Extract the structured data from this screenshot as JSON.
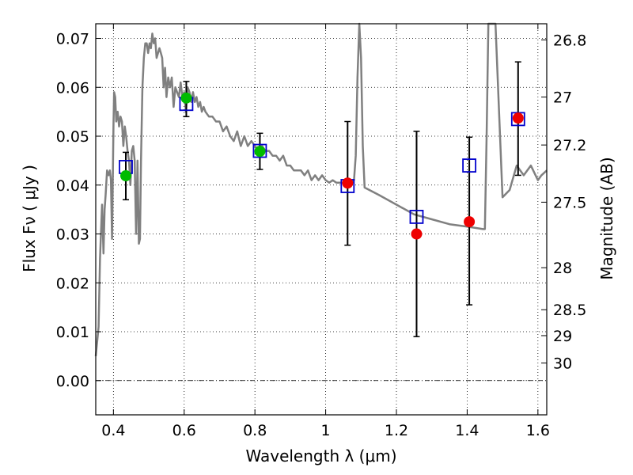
{
  "chart_data": {
    "type": "scatter",
    "xlabel": "Wavelength  λ (μm)",
    "ylabel": "Flux  Fν  ( μJy )",
    "y2label": "Magnitude (AB)",
    "xlim": [
      0.35,
      1.625
    ],
    "ylim": [
      -0.007,
      0.073
    ],
    "grid": true,
    "xticks": [
      0.4,
      0.6,
      0.8,
      1.0,
      1.2,
      1.4,
      1.6
    ],
    "xtick_labels": [
      "0.4",
      "0.6",
      "0.8",
      "1",
      "1.2",
      "1.4",
      "1.6"
    ],
    "yticks": [
      0.0,
      0.01,
      0.02,
      0.03,
      0.04,
      0.05,
      0.06,
      0.07
    ],
    "ytick_labels": [
      "0.00",
      "0.01",
      "0.02",
      "0.03",
      "0.04",
      "0.05",
      "0.06",
      "0.07"
    ],
    "y2ticks": [
      {
        "label": "26.8",
        "flux": 0.0697
      },
      {
        "label": "27",
        "flux": 0.058
      },
      {
        "label": "27.2",
        "flux": 0.0482
      },
      {
        "label": "27.5",
        "flux": 0.0365
      },
      {
        "label": "28",
        "flux": 0.0231
      },
      {
        "label": "28.5",
        "flux": 0.0145
      },
      {
        "label": "29",
        "flux": 0.0092
      },
      {
        "label": "30",
        "flux": 0.0036
      }
    ],
    "colors": {
      "sed": "#808080",
      "model": "#0000cc",
      "green": "#00bb00",
      "red": "#ee0000",
      "errorbar": "#000000"
    },
    "sed_x": [
      0.35,
      0.358,
      0.362,
      0.368,
      0.372,
      0.375,
      0.378,
      0.382,
      0.386,
      0.39,
      0.393,
      0.396,
      0.4,
      0.402,
      0.405,
      0.408,
      0.412,
      0.416,
      0.42,
      0.424,
      0.428,
      0.432,
      0.436,
      0.44,
      0.444,
      0.448,
      0.452,
      0.456,
      0.46,
      0.464,
      0.468,
      0.472,
      0.475,
      0.478,
      0.482,
      0.486,
      0.49,
      0.494,
      0.498,
      0.502,
      0.506,
      0.51,
      0.514,
      0.518,
      0.522,
      0.526,
      0.53,
      0.534,
      0.538,
      0.542,
      0.546,
      0.55,
      0.555,
      0.56,
      0.565,
      0.57,
      0.575,
      0.58,
      0.585,
      0.59,
      0.595,
      0.6,
      0.605,
      0.61,
      0.615,
      0.62,
      0.625,
      0.63,
      0.635,
      0.64,
      0.645,
      0.65,
      0.655,
      0.66,
      0.67,
      0.68,
      0.69,
      0.7,
      0.71,
      0.72,
      0.73,
      0.74,
      0.75,
      0.76,
      0.77,
      0.78,
      0.79,
      0.8,
      0.81,
      0.82,
      0.83,
      0.84,
      0.85,
      0.86,
      0.87,
      0.88,
      0.89,
      0.9,
      0.91,
      0.92,
      0.93,
      0.94,
      0.95,
      0.96,
      0.97,
      0.98,
      0.99,
      1.0,
      1.01,
      1.02,
      1.03,
      1.04,
      1.05,
      1.06,
      1.07,
      1.08,
      1.085,
      1.09,
      1.095,
      1.1,
      1.105,
      1.11,
      1.15,
      1.2,
      1.25,
      1.3,
      1.35,
      1.4,
      1.445,
      1.45,
      1.455,
      1.46,
      1.465,
      1.47,
      1.48,
      1.5,
      1.52,
      1.54,
      1.56,
      1.58,
      1.6,
      1.61,
      1.625
    ],
    "sed_y": [
      0.005,
      0.011,
      0.025,
      0.036,
      0.026,
      0.035,
      0.038,
      0.043,
      0.042,
      0.043,
      0.041,
      0.029,
      0.052,
      0.059,
      0.058,
      0.053,
      0.055,
      0.052,
      0.054,
      0.053,
      0.048,
      0.052,
      0.05,
      0.047,
      0.045,
      0.04,
      0.047,
      0.048,
      0.045,
      0.03,
      0.045,
      0.028,
      0.029,
      0.045,
      0.06,
      0.066,
      0.069,
      0.069,
      0.067,
      0.069,
      0.068,
      0.071,
      0.069,
      0.07,
      0.066,
      0.067,
      0.068,
      0.067,
      0.066,
      0.06,
      0.064,
      0.058,
      0.062,
      0.06,
      0.062,
      0.056,
      0.06,
      0.059,
      0.058,
      0.061,
      0.058,
      0.059,
      0.055,
      0.06,
      0.059,
      0.057,
      0.059,
      0.057,
      0.058,
      0.056,
      0.057,
      0.055,
      0.056,
      0.055,
      0.054,
      0.054,
      0.053,
      0.053,
      0.051,
      0.052,
      0.05,
      0.049,
      0.051,
      0.048,
      0.05,
      0.048,
      0.049,
      0.048,
      0.047,
      0.048,
      0.047,
      0.047,
      0.046,
      0.046,
      0.045,
      0.046,
      0.044,
      0.044,
      0.043,
      0.043,
      0.043,
      0.042,
      0.043,
      0.041,
      0.042,
      0.041,
      0.042,
      0.041,
      0.0405,
      0.041,
      0.0405,
      0.0405,
      0.0405,
      0.04,
      0.04,
      0.041,
      0.046,
      0.062,
      0.073,
      0.066,
      0.048,
      0.0395,
      0.038,
      0.036,
      0.034,
      0.033,
      0.032,
      0.0315,
      0.031,
      0.031,
      0.05,
      0.073,
      0.073,
      0.073,
      0.073,
      0.0375,
      0.039,
      0.044,
      0.042,
      0.044,
      0.041,
      0.042,
      0.043
    ],
    "models": [
      {
        "x": 0.435,
        "y": 0.0437
      },
      {
        "x": 0.606,
        "y": 0.0566
      },
      {
        "x": 0.814,
        "y": 0.047
      },
      {
        "x": 1.062,
        "y": 0.0398
      },
      {
        "x": 1.257,
        "y": 0.0335
      },
      {
        "x": 1.406,
        "y": 0.044
      },
      {
        "x": 1.544,
        "y": 0.0535
      }
    ],
    "observations": [
      {
        "x": 0.435,
        "y": 0.0419,
        "err_low": 0.037,
        "err_high": 0.0467,
        "color": "green"
      },
      {
        "x": 0.606,
        "y": 0.0578,
        "err_low": 0.054,
        "err_high": 0.0612,
        "color": "green"
      },
      {
        "x": 0.814,
        "y": 0.0469,
        "err_low": 0.0432,
        "err_high": 0.0506,
        "color": "green"
      },
      {
        "x": 1.062,
        "y": 0.0404,
        "err_low": 0.0277,
        "err_high": 0.053,
        "color": "red"
      },
      {
        "x": 1.257,
        "y": 0.03,
        "err_low": 0.009,
        "err_high": 0.051,
        "color": "red"
      },
      {
        "x": 1.406,
        "y": 0.0325,
        "err_low": 0.0155,
        "err_high": 0.0498,
        "color": "red"
      },
      {
        "x": 1.544,
        "y": 0.0537,
        "err_low": 0.042,
        "err_high": 0.0652,
        "color": "red"
      }
    ]
  }
}
